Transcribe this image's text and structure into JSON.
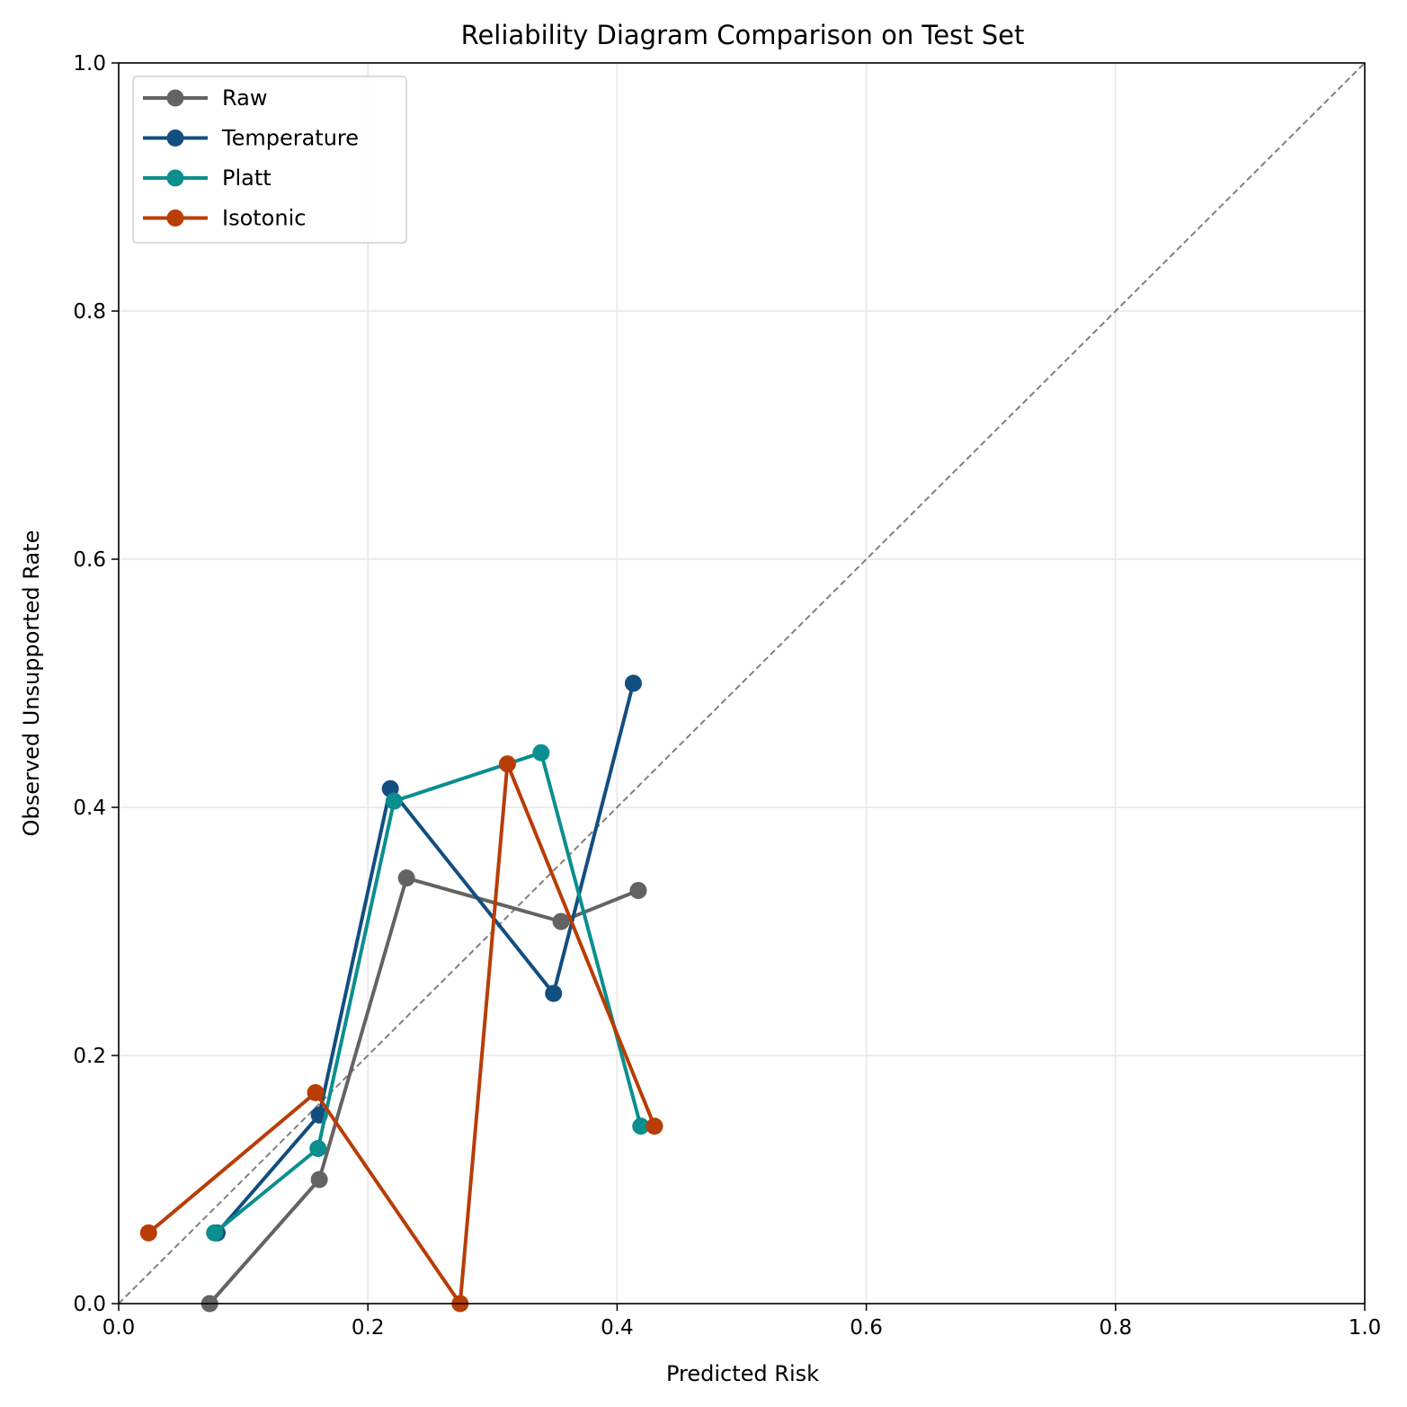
{
  "chart_data": {
    "type": "line",
    "title": "Reliability Diagram Comparison on Test Set",
    "xlabel": "Predicted Risk",
    "ylabel": "Observed Unsupported Rate",
    "xlim": [
      0,
      1
    ],
    "ylim": [
      0,
      1
    ],
    "xticks": [
      "0.0",
      "0.2",
      "0.4",
      "0.6",
      "0.8",
      "1.0"
    ],
    "yticks": [
      "0.0",
      "0.2",
      "0.4",
      "0.6",
      "0.8",
      "1.0"
    ],
    "grid": true,
    "legend_position": "top-left",
    "reference_line": {
      "x": [
        0,
        1
      ],
      "y": [
        0,
        1
      ],
      "style": "dashed",
      "color": "#808080"
    },
    "series": [
      {
        "name": "Raw",
        "color": "#636363",
        "x": [
          0.073,
          0.161,
          0.231,
          0.355,
          0.417
        ],
        "y": [
          0.0,
          0.1,
          0.343,
          0.308,
          0.333
        ]
      },
      {
        "name": "Temperature",
        "color": "#124e80",
        "x": [
          0.079,
          0.161,
          0.218,
          0.349,
          0.413
        ],
        "y": [
          0.057,
          0.152,
          0.415,
          0.25,
          0.5
        ]
      },
      {
        "name": "Platt",
        "color": "#0b8e8e",
        "x": [
          0.077,
          0.16,
          0.221,
          0.339,
          0.419
        ],
        "y": [
          0.057,
          0.125,
          0.405,
          0.444,
          0.143
        ]
      },
      {
        "name": "Isotonic",
        "color": "#b83d06",
        "x": [
          0.024,
          0.158,
          0.274,
          0.312,
          0.43
        ],
        "y": [
          0.057,
          0.17,
          0.0,
          0.435,
          0.143
        ]
      }
    ]
  }
}
